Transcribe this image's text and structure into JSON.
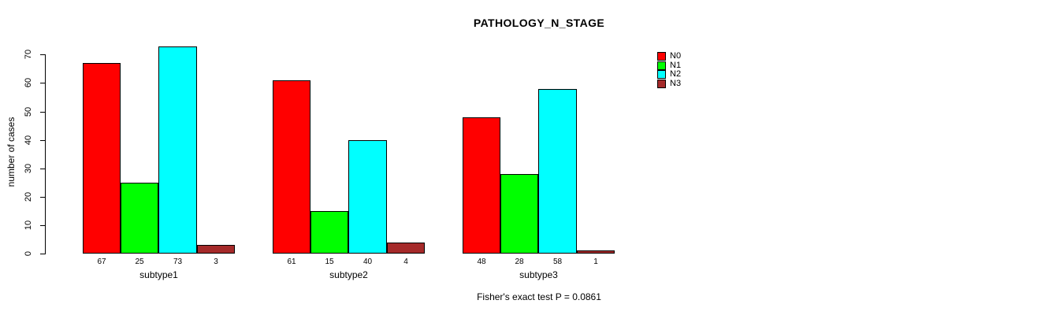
{
  "title": "PATHOLOGY_N_STAGE",
  "chart_data": {
    "type": "bar",
    "title": "PATHOLOGY_N_STAGE",
    "categories": [
      "subtype1",
      "subtype2",
      "subtype3"
    ],
    "series": [
      {
        "name": "N0",
        "color": "#ff0000",
        "values": [
          67,
          61,
          48
        ]
      },
      {
        "name": "N1",
        "color": "#00ff00",
        "values": [
          25,
          15,
          28
        ]
      },
      {
        "name": "N2",
        "color": "#00ffff",
        "values": [
          73,
          40,
          58
        ]
      },
      {
        "name": "N3",
        "color": "#a52a2a",
        "values": [
          3,
          4,
          1
        ]
      }
    ],
    "bar_value_labels": [
      [
        "67",
        "25",
        "73",
        "3"
      ],
      [
        "61",
        "15",
        "40",
        "4"
      ],
      [
        "48",
        "28",
        "58",
        "1"
      ]
    ],
    "xlabel": "",
    "ylabel": "number of cases",
    "ylim": [
      0,
      70
    ],
    "y_ticks": [
      0,
      10,
      20,
      30,
      40,
      50,
      60,
      70
    ],
    "grid": false,
    "legend_position": "right",
    "legend": [
      "N0",
      "N1",
      "N2",
      "N3"
    ],
    "annotation": "Fisher's exact test P = 0.0861",
    "background": "#ffffff",
    "axis_color": "#000000",
    "bar_border_color": "#000000"
  }
}
